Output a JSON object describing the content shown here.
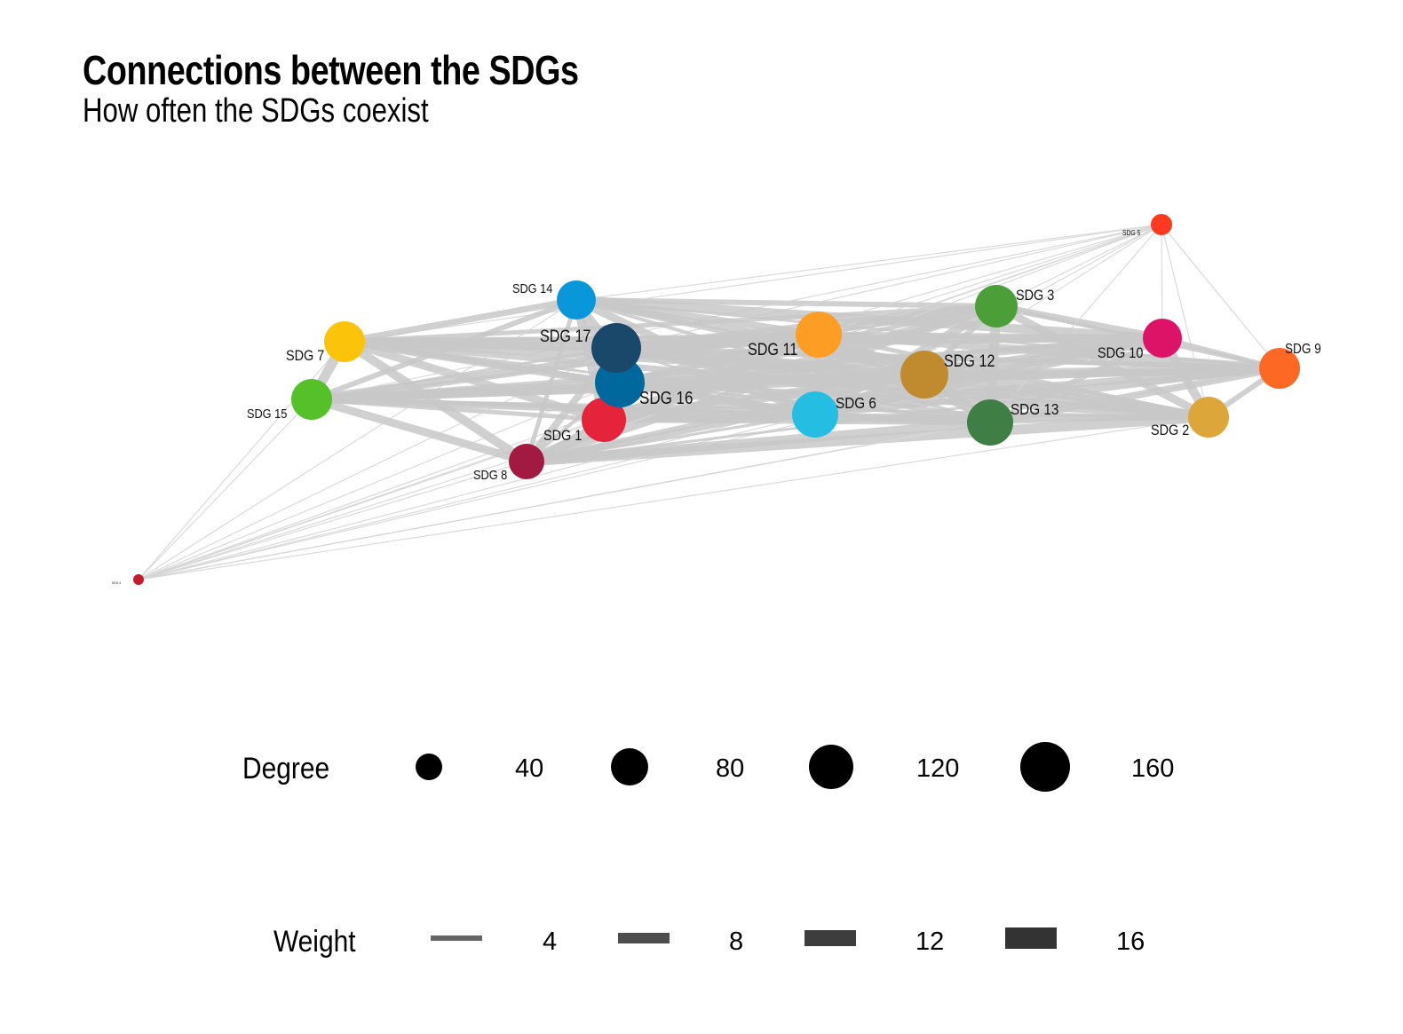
{
  "title": "Connections between the SDGs",
  "subtitle": "How often the SDGs coexist",
  "nodes": [
    {
      "id": "SDG 1",
      "label": "SDG 1",
      "color": "#E5243B"
    },
    {
      "id": "SDG 2",
      "label": "SDG 2",
      "color": "#DDA63A"
    },
    {
      "id": "SDG 3",
      "label": "SDG 3",
      "color": "#4C9F38"
    },
    {
      "id": "SDG 4",
      "label": "SDG 4",
      "color": "#C5192D"
    },
    {
      "id": "SDG 5",
      "label": "SDG 5",
      "color": "#FF3A21"
    },
    {
      "id": "SDG 6",
      "label": "SDG 6",
      "color": "#26BDE2"
    },
    {
      "id": "SDG 7",
      "label": "SDG 7",
      "color": "#FCC30B"
    },
    {
      "id": "SDG 8",
      "label": "SDG 8",
      "color": "#A21942"
    },
    {
      "id": "SDG 9",
      "label": "SDG 9",
      "color": "#FD6925"
    },
    {
      "id": "SDG 10",
      "label": "SDG 10",
      "color": "#DD1367"
    },
    {
      "id": "SDG 11",
      "label": "SDG 11",
      "color": "#FD9D24"
    },
    {
      "id": "SDG 12",
      "label": "SDG 12",
      "color": "#BF8B2E"
    },
    {
      "id": "SDG 13",
      "label": "SDG 13",
      "color": "#3F7E44"
    },
    {
      "id": "SDG 14",
      "label": "SDG 14",
      "color": "#0A97D9"
    },
    {
      "id": "SDG 15",
      "label": "SDG 15",
      "color": "#56C02B"
    },
    {
      "id": "SDG 16",
      "label": "SDG 16",
      "color": "#00689D"
    },
    {
      "id": "SDG 17",
      "label": "SDG 17",
      "color": "#19486A"
    }
  ],
  "legend": {
    "degree": {
      "title": "Degree",
      "labels": [
        "40",
        "80",
        "120",
        "160"
      ]
    },
    "weight": {
      "title": "Weight",
      "labels": [
        "4",
        "8",
        "12",
        "16"
      ]
    }
  },
  "edge_color": "#C8C8C8"
}
